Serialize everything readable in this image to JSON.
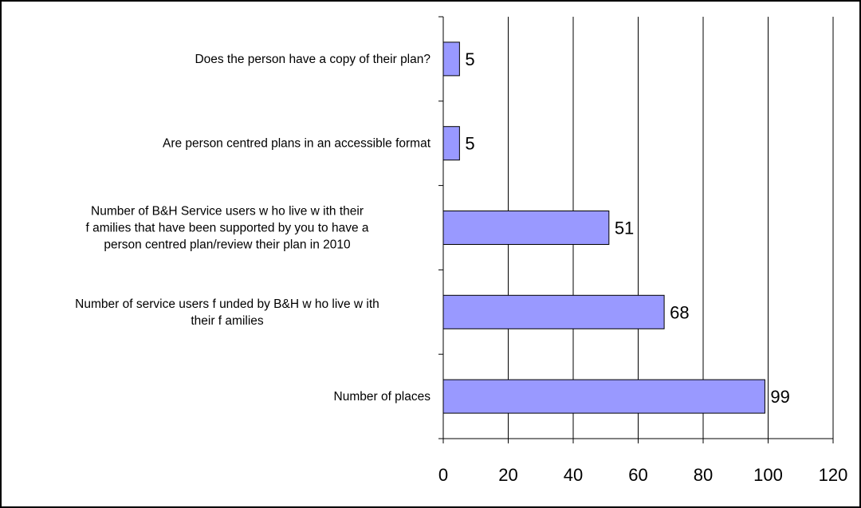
{
  "chart_data": {
    "type": "bar",
    "orientation": "horizontal",
    "categories": [
      "Does the person have a copy of their plan?",
      "Are person centred plans in an accessible format",
      "Number of B&H Service users w ho live w ith their families that have been supported by you to have a person centred plan/review  their plan in 2010",
      "Number of service users f unded by B&H w ho live w ith their families",
      "Number of places"
    ],
    "category_lines": [
      [
        "Does the person have a copy of their plan?"
      ],
      [
        "Are person centred plans in an accessible format"
      ],
      [
        "Number of B&H Service users w ho live w ith their",
        "f amilies that have been supported by you to have a",
        "person centred plan/review  their plan in 2010"
      ],
      [
        "Number of service users f unded by B&H w ho live w ith",
        "their f amilies"
      ],
      [
        "Number of places"
      ]
    ],
    "values": [
      5,
      5,
      51,
      68,
      99
    ],
    "value_labels": [
      "5",
      "5",
      "51",
      "68",
      "99"
    ],
    "xlim": [
      0,
      120
    ],
    "x_ticks": [
      0,
      20,
      40,
      60,
      80,
      100,
      120
    ],
    "x_tick_labels": [
      "0",
      "20",
      "40",
      "60",
      "80",
      "100",
      "120"
    ],
    "grid": "vertical",
    "legend": "none",
    "bar_color": "#9999ff",
    "bar_edge_color": "#000000",
    "grid_color": "#000000"
  }
}
